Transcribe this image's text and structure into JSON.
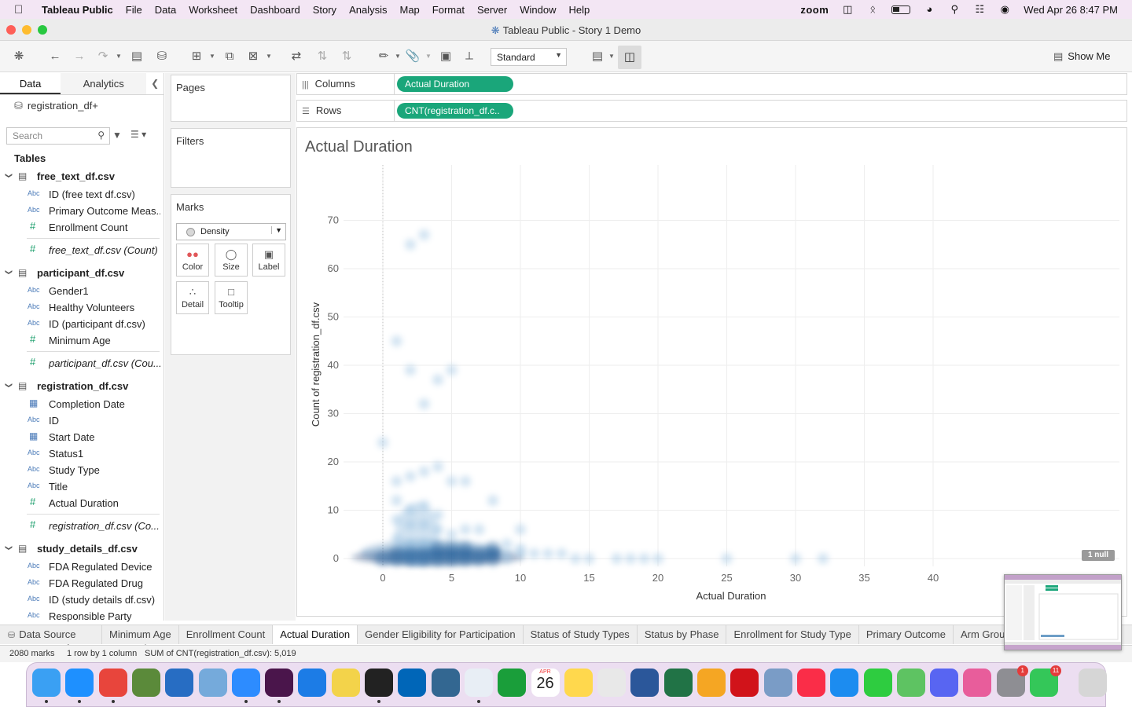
{
  "menubar": {
    "app_name": "Tableau Public",
    "items": [
      "File",
      "Data",
      "Worksheet",
      "Dashboard",
      "Story",
      "Analysis",
      "Map",
      "Format",
      "Server",
      "Window",
      "Help"
    ],
    "zoom_label": "zoom",
    "datetime": "Wed Apr 26  8:47 PM"
  },
  "window": {
    "title": "Tableau Public - Story 1 Demo"
  },
  "toolbar": {
    "fit_select": "Standard",
    "show_me": "Show Me"
  },
  "left_pane": {
    "tab_data": "Data",
    "tab_analytics": "Analytics",
    "datasource": "registration_df+",
    "search_placeholder": "Search",
    "tables_header": "Tables",
    "tables": [
      {
        "name": "free_text_df.csv",
        "fields": [
          {
            "type": "Abc",
            "name": "ID (free text df.csv)"
          },
          {
            "type": "Abc",
            "name": "Primary Outcome Meas..."
          },
          {
            "type": "#",
            "name": "Enrollment Count"
          },
          {
            "type": "#",
            "name": "free_text_df.csv (Count)",
            "italic": true
          }
        ]
      },
      {
        "name": "participant_df.csv",
        "fields": [
          {
            "type": "Abc",
            "name": "Gender1"
          },
          {
            "type": "Abc",
            "name": "Healthy Volunteers"
          },
          {
            "type": "Abc",
            "name": "ID (participant df.csv)"
          },
          {
            "type": "#",
            "name": "Minimum Age"
          },
          {
            "type": "#",
            "name": "participant_df.csv (Cou...",
            "italic": true
          }
        ]
      },
      {
        "name": "registration_df.csv",
        "fields": [
          {
            "type": "date",
            "name": "Completion Date"
          },
          {
            "type": "Abc",
            "name": "ID"
          },
          {
            "type": "date",
            "name": "Start Date"
          },
          {
            "type": "Abc",
            "name": "Status1"
          },
          {
            "type": "Abc",
            "name": "Study Type"
          },
          {
            "type": "Abc",
            "name": "Title"
          },
          {
            "type": "#",
            "name": "Actual Duration"
          },
          {
            "type": "#",
            "name": "registration_df.csv (Co...",
            "italic": true
          }
        ]
      },
      {
        "name": "study_details_df.csv",
        "fields": [
          {
            "type": "Abc",
            "name": "FDA Regulated Device"
          },
          {
            "type": "Abc",
            "name": "FDA Regulated Drug"
          },
          {
            "type": "Abc",
            "name": "ID (study details df.csv)"
          },
          {
            "type": "Abc",
            "name": "Responsible Party"
          },
          {
            "type": "#",
            "name": "study_details_df.csv (C...",
            "italic": true
          }
        ]
      }
    ]
  },
  "shelves": {
    "pages": "Pages",
    "filters": "Filters",
    "marks": "Marks",
    "mark_type": "Density",
    "mark_buttons": [
      "Color",
      "Size",
      "Label",
      "Detail",
      "Tooltip"
    ],
    "columns_label": "Columns",
    "rows_label": "Rows",
    "columns_pill": "Actual Duration",
    "rows_pill": "CNT(registration_df.c.."
  },
  "view": {
    "title": "Actual Duration",
    "null_badge": "1 null"
  },
  "chart_data": {
    "type": "scatter",
    "mark": "density",
    "title": "Actual Duration",
    "xlabel": "Actual Duration",
    "ylabel": "Count of registration_df.csv",
    "xlim": [
      -3,
      53
    ],
    "ylim": [
      -1,
      71
    ],
    "x_ticks": [
      0,
      5,
      10,
      15,
      20,
      25,
      30,
      35,
      40
    ],
    "y_ticks": [
      0,
      10,
      20,
      30,
      40,
      50,
      60,
      70
    ],
    "points": [
      [
        0,
        24
      ],
      [
        1,
        45
      ],
      [
        2,
        39
      ],
      [
        2,
        65
      ],
      [
        3,
        67
      ],
      [
        3,
        32
      ],
      [
        4,
        37
      ],
      [
        5,
        39
      ],
      [
        2,
        17
      ],
      [
        1,
        16
      ],
      [
        3,
        18
      ],
      [
        4,
        19
      ],
      [
        5,
        16
      ],
      [
        6,
        16
      ],
      [
        8,
        12
      ],
      [
        1,
        12
      ],
      [
        2,
        10
      ],
      [
        3,
        11
      ],
      [
        4,
        9
      ],
      [
        1,
        8
      ],
      [
        2,
        7
      ],
      [
        3,
        7
      ],
      [
        4,
        6
      ],
      [
        5,
        5
      ],
      [
        6,
        6
      ],
      [
        7,
        6
      ],
      [
        10,
        6
      ],
      [
        10,
        2
      ],
      [
        9,
        3
      ],
      [
        8,
        2
      ],
      [
        1,
        4
      ],
      [
        2,
        3
      ],
      [
        3,
        3
      ],
      [
        4,
        2
      ],
      [
        5,
        2
      ],
      [
        6,
        2
      ],
      [
        7,
        1
      ],
      [
        8,
        1
      ],
      [
        1,
        1
      ],
      [
        2,
        1
      ],
      [
        3,
        1
      ],
      [
        4,
        1
      ],
      [
        5,
        1
      ],
      [
        6,
        1
      ],
      [
        9,
        1
      ],
      [
        10,
        1
      ],
      [
        11,
        1
      ],
      [
        12,
        1
      ],
      [
        13,
        1
      ],
      [
        14,
        0
      ],
      [
        15,
        0
      ],
      [
        17,
        0
      ],
      [
        18,
        0
      ],
      [
        19,
        0
      ],
      [
        20,
        0
      ],
      [
        25,
        0
      ],
      [
        30,
        0
      ],
      [
        32,
        0
      ],
      [
        0,
        0
      ],
      [
        1,
        0
      ],
      [
        2,
        0
      ],
      [
        3,
        0
      ],
      [
        4,
        0
      ],
      [
        5,
        0
      ],
      [
        6,
        0
      ],
      [
        7,
        0
      ],
      [
        8,
        0
      ],
      [
        9,
        0
      ]
    ]
  },
  "sheet_tabs": {
    "data_source": "Data Source",
    "tabs": [
      "Minimum Age",
      "Enrollment Count",
      "Actual Duration",
      "Gender Eligibility for Participation",
      "Status of Study Types",
      "Status by Phase",
      "Enrollment for Study Type",
      "Primary Outcome",
      "Arm Group and Inter"
    ],
    "active": "Actual Duration"
  },
  "status_bar": {
    "marks": "2080 marks",
    "rows_cols": "1 row by 1 column",
    "sum": "SUM of CNT(registration_df.csv): 5,019"
  },
  "dock": {
    "calendar_month": "APR",
    "calendar_day": "26",
    "badges": [
      "1",
      "11"
    ]
  },
  "colors": {
    "pill": "#1aa67a",
    "density_dark": "#08306b",
    "density_light": "#c6dbef"
  }
}
